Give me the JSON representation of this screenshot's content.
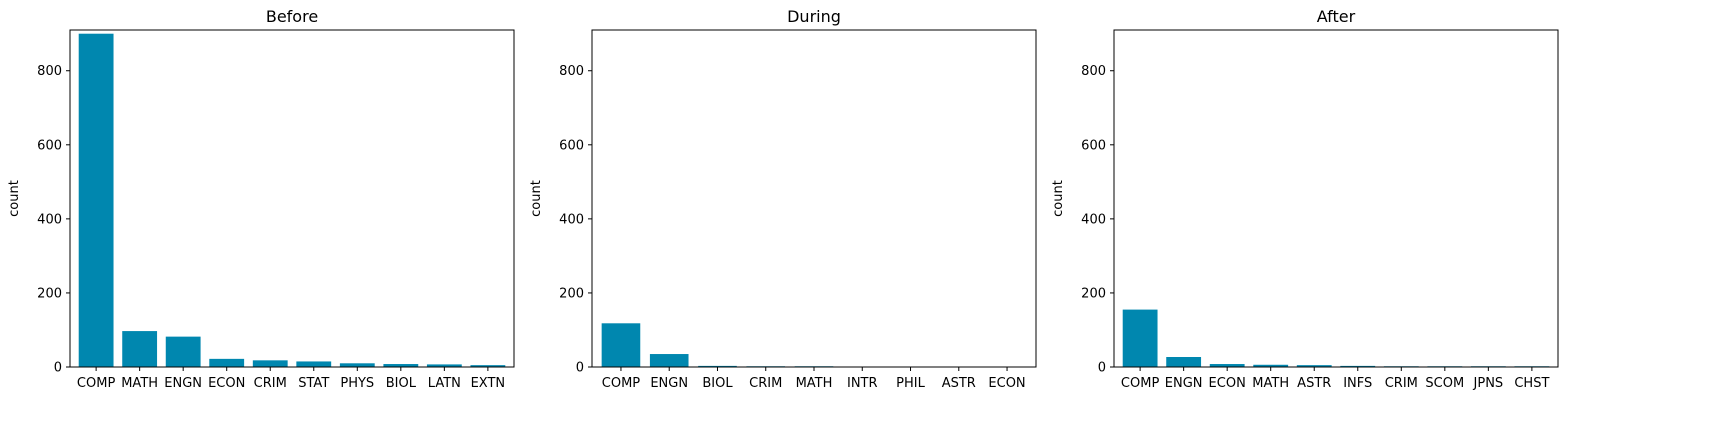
{
  "chart_data": [
    {
      "type": "bar",
      "title": "Before",
      "xlabel": "",
      "ylabel": "count",
      "ylim": [
        0,
        910
      ],
      "yticks": [
        0,
        200,
        400,
        600,
        800
      ],
      "categories": [
        "COMP",
        "MATH",
        "ENGN",
        "ECON",
        "CRIM",
        "STAT",
        "PHYS",
        "BIOL",
        "LATN",
        "EXTN"
      ],
      "values": [
        900,
        97,
        82,
        22,
        18,
        15,
        10,
        8,
        7,
        5
      ],
      "color": "#0087AF"
    },
    {
      "type": "bar",
      "title": "During",
      "xlabel": "",
      "ylabel": "count",
      "ylim": [
        0,
        910
      ],
      "yticks": [
        0,
        200,
        400,
        600,
        800
      ],
      "categories": [
        "COMP",
        "ENGN",
        "BIOL",
        "CRIM",
        "MATH",
        "INTR",
        "PHIL",
        "ASTR",
        "ECON"
      ],
      "values": [
        118,
        35,
        3,
        2,
        2,
        1,
        1,
        1,
        1
      ],
      "color": "#0087AF"
    },
    {
      "type": "bar",
      "title": "After",
      "xlabel": "",
      "ylabel": "count",
      "ylim": [
        0,
        910
      ],
      "yticks": [
        0,
        200,
        400,
        600,
        800
      ],
      "categories": [
        "COMP",
        "ENGN",
        "ECON",
        "MATH",
        "ASTR",
        "INFS",
        "CRIM",
        "SCOM",
        "JPNS",
        "CHST"
      ],
      "values": [
        155,
        27,
        8,
        6,
        5,
        3,
        2,
        2,
        2,
        2
      ],
      "color": "#0087AF"
    }
  ]
}
